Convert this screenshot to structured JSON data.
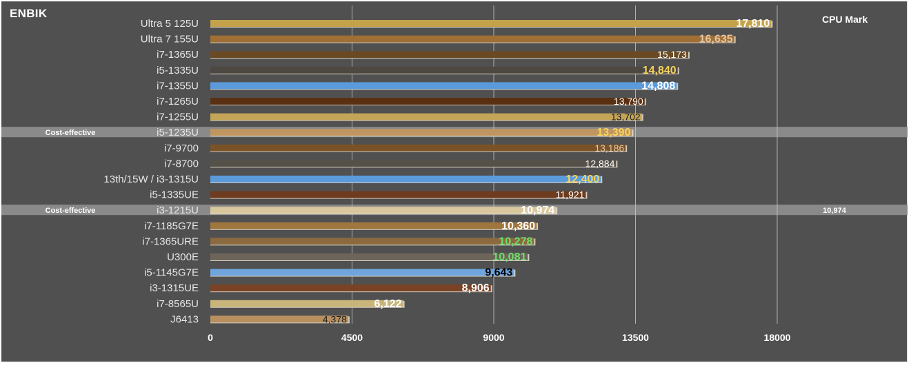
{
  "brand": "ENBIK",
  "metric_label": "CPU Mark",
  "chart_data": {
    "type": "bar",
    "orientation": "horizontal",
    "title": "",
    "xlim": [
      0,
      22600
    ],
    "x_ticks": [
      0,
      4500,
      9000,
      13500,
      18000
    ],
    "grid": "vertical lines",
    "highlight_tag": "Cost-effective",
    "extra_value_label": "10,974",
    "items": [
      {
        "label": "Ultra 5 125U",
        "value": 17810,
        "value_label": "17,810",
        "color": "#c4a24c",
        "label_color": "#ffffff",
        "bold": true
      },
      {
        "label": "Ultra 7 155U",
        "value": 16635,
        "value_label": "16,635",
        "color": "#a06f35",
        "label_color": "#e2c6a8",
        "bold": true
      },
      {
        "label": "i7-1365U",
        "value": 15173,
        "value_label": "15,173",
        "color": "#6a4a25",
        "label_color": "#ffffff",
        "bold": false
      },
      {
        "label": "i5-1335U",
        "value": 14840,
        "value_label": "14,840",
        "color": "#4e4842",
        "label_color": "#f5d35c",
        "bold": true
      },
      {
        "label": "i7-1355U",
        "value": 14808,
        "value_label": "14,808",
        "color": "#5b9bdc",
        "label_color": "#ffffff",
        "bold": true
      },
      {
        "label": "i7-1265U",
        "value": 13790,
        "value_label": "13,790",
        "color": "#5a3012",
        "label_color": "#ffffff",
        "bold": false
      },
      {
        "label": "i7-1255U",
        "value": 13702,
        "value_label": "13,702",
        "color": "#c4a558",
        "label_color": "#222222",
        "bold": false
      },
      {
        "label": "i5-1235U",
        "value": 13390,
        "value_label": "13,390",
        "color": "#bf9560",
        "label_color": "#f5d35c",
        "bold": true,
        "highlight": true
      },
      {
        "label": "i7-9700",
        "value": 13186,
        "value_label": "13,186",
        "color": "#7a5227",
        "label_color": "#e2c6a8",
        "bold": false
      },
      {
        "label": "i7-8700",
        "value": 12884,
        "value_label": "12,884",
        "color": "#555149",
        "label_color": "#ffffff",
        "bold": false
      },
      {
        "label": "13th/15W / i3-1315U",
        "value": 12400,
        "value_label": "12,400",
        "color": "#5b9bdc",
        "label_color": "#f5d35c",
        "bold": true
      },
      {
        "label": "i5-1335UE",
        "value": 11921,
        "value_label": "11,921",
        "color": "#6e3b1e",
        "label_color": "#ffffff",
        "bold": false
      },
      {
        "label": "i3-1215U",
        "value": 10974,
        "value_label": "10,974",
        "color": "#d9c79e",
        "label_color": "#ffffff",
        "bold": true,
        "highlight": true
      },
      {
        "label": "i7-1185G7E",
        "value": 10360,
        "value_label": "10,360",
        "color": "#a0763f",
        "label_color": "#ffffff",
        "bold": true
      },
      {
        "label": "i7-1365URE",
        "value": 10278,
        "value_label": "10,278",
        "color": "#8c6a3f",
        "label_color": "#6be06b",
        "bold": true
      },
      {
        "label": "U300E",
        "value": 10081,
        "value_label": "10,081",
        "color": "#6d655a",
        "label_color": "#6be06b",
        "bold": true
      },
      {
        "label": "i5-1145G7E",
        "value": 9643,
        "value_label": "9,643",
        "color": "#6fa5dc",
        "label_color": "#000000",
        "bold": true
      },
      {
        "label": "i3-1315UE",
        "value": 8906,
        "value_label": "8,906",
        "color": "#7a4326",
        "label_color": "#ffffff",
        "bold": true
      },
      {
        "label": "i7-8565U",
        "value": 6122,
        "value_label": "6,122",
        "color": "#c9b47a",
        "label_color": "#ffffff",
        "bold": true
      },
      {
        "label": "J6413",
        "value": 4378,
        "value_label": "4,378",
        "color": "#b89060",
        "label_color": "#222222",
        "bold": false
      }
    ]
  }
}
